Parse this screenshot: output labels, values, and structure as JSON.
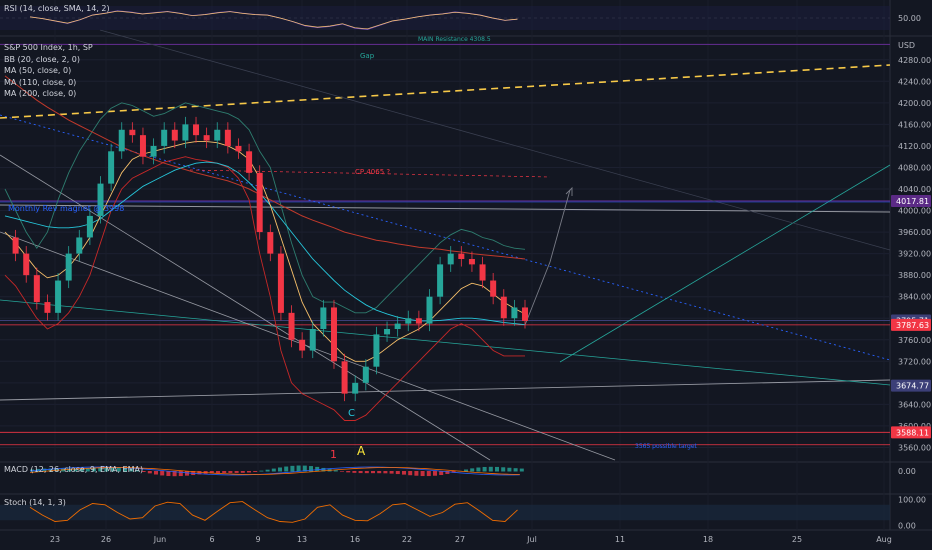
{
  "chart_data": {
    "type": "line",
    "title": "S&P 500 Index, 1h, SP",
    "currency": "USD",
    "studies": [
      "BB (20, close, 2, 0)",
      "MA (50, close, 0)",
      "MA (110, close, 0)",
      "MA (200, close, 0)"
    ],
    "x_ticks": [
      "23",
      "26",
      "Jun",
      "6",
      "9",
      "13",
      "16",
      "22",
      "27",
      "Jul",
      "11",
      "18",
      "25",
      "Aug"
    ],
    "price_ticks": [
      4280,
      4240,
      4200,
      4160,
      4120,
      4080,
      4040,
      4000,
      3960,
      3920,
      3880,
      3840,
      3800,
      3760,
      3720,
      3680,
      3640,
      3600,
      3560
    ],
    "ylim": [
      3533,
      4313
    ],
    "price_tags": [
      {
        "value": "4017.81",
        "color": "#5b2a86"
      },
      {
        "value": "3795.71",
        "color": "#3c3f78"
      },
      {
        "value": "3787.63",
        "color": "#f23645"
      },
      {
        "value": "3674.77",
        "color": "#3c3f78"
      },
      {
        "value": "3588.11",
        "color": "#f23645"
      }
    ],
    "annotations": [
      {
        "text": "MAIN Resistance 4308.5",
        "color": "#26a69a"
      },
      {
        "text": "Gap",
        "color": "#26a69a"
      },
      {
        "text": "Monthly Rev magnet @ 3998",
        "color": "#2962ff"
      },
      {
        "text": "CP 4065 ?",
        "color": "#f23645"
      },
      {
        "text": "3565 possible target",
        "color": "#2962ff"
      },
      {
        "text": "C",
        "color": "#26c6da"
      },
      {
        "text": "A",
        "color": "#ffeb3b"
      },
      {
        "text": "1",
        "color": "#f23645"
      }
    ],
    "price_series": [
      {
        "t": 0,
        "v": 3950
      },
      {
        "t": 1,
        "v": 3920
      },
      {
        "t": 2,
        "v": 3880
      },
      {
        "t": 3,
        "v": 3830
      },
      {
        "t": 4,
        "v": 3810
      },
      {
        "t": 5,
        "v": 3870
      },
      {
        "t": 6,
        "v": 3920
      },
      {
        "t": 7,
        "v": 3950
      },
      {
        "t": 8,
        "v": 3990
      },
      {
        "t": 9,
        "v": 4050
      },
      {
        "t": 10,
        "v": 4110
      },
      {
        "t": 11,
        "v": 4150
      },
      {
        "t": 12,
        "v": 4140
      },
      {
        "t": 13,
        "v": 4100
      },
      {
        "t": 14,
        "v": 4120
      },
      {
        "t": 15,
        "v": 4150
      },
      {
        "t": 16,
        "v": 4130
      },
      {
        "t": 17,
        "v": 4160
      },
      {
        "t": 18,
        "v": 4140
      },
      {
        "t": 19,
        "v": 4130
      },
      {
        "t": 20,
        "v": 4150
      },
      {
        "t": 21,
        "v": 4120
      },
      {
        "t": 22,
        "v": 4110
      },
      {
        "t": 23,
        "v": 4070
      },
      {
        "t": 24,
        "v": 3960
      },
      {
        "t": 25,
        "v": 3920
      },
      {
        "t": 26,
        "v": 3810
      },
      {
        "t": 27,
        "v": 3760
      },
      {
        "t": 28,
        "v": 3740
      },
      {
        "t": 29,
        "v": 3780
      },
      {
        "t": 30,
        "v": 3820
      },
      {
        "t": 31,
        "v": 3720
      },
      {
        "t": 32,
        "v": 3660
      },
      {
        "t": 33,
        "v": 3680
      },
      {
        "t": 34,
        "v": 3710
      },
      {
        "t": 35,
        "v": 3770
      },
      {
        "t": 36,
        "v": 3780
      },
      {
        "t": 37,
        "v": 3790
      },
      {
        "t": 38,
        "v": 3800
      },
      {
        "t": 39,
        "v": 3790
      },
      {
        "t": 40,
        "v": 3840
      },
      {
        "t": 41,
        "v": 3900
      },
      {
        "t": 42,
        "v": 3920
      },
      {
        "t": 43,
        "v": 3910
      },
      {
        "t": 44,
        "v": 3900
      },
      {
        "t": 45,
        "v": 3870
      },
      {
        "t": 46,
        "v": 3840
      },
      {
        "t": 47,
        "v": 3800
      },
      {
        "t": 48,
        "v": 3820
      },
      {
        "t": 49,
        "v": 3795
      }
    ],
    "ma50": [
      3960,
      3940,
      3915,
      3890,
      3875,
      3880,
      3895,
      3920,
      3950,
      3990,
      4030,
      4070,
      4095,
      4105,
      4110,
      4115,
      4120,
      4125,
      4128,
      4128,
      4126,
      4120,
      4110,
      4095,
      4060,
      4010,
      3950,
      3890,
      3830,
      3790,
      3770,
      3750,
      3730,
      3720,
      3720,
      3730,
      3745,
      3760,
      3770,
      3780,
      3795,
      3815,
      3835,
      3855,
      3865,
      3860,
      3845,
      3830,
      3818,
      3808
    ],
    "ma110": [
      3990,
      3985,
      3980,
      3975,
      3970,
      3968,
      3968,
      3970,
      3975,
      3985,
      4000,
      4015,
      4030,
      4045,
      4055,
      4065,
      4075,
      4082,
      4088,
      4090,
      4088,
      4082,
      4070,
      4052,
      4032,
      4010,
      3985,
      3960,
      3935,
      3910,
      3890,
      3870,
      3852,
      3838,
      3825,
      3815,
      3808,
      3802,
      3798,
      3795,
      3795,
      3796,
      3798,
      3800,
      3800,
      3798,
      3795,
      3792,
      3790,
      3788
    ],
    "ma200": [
      4250,
      4235,
      4220,
      4205,
      4192,
      4180,
      4168,
      4158,
      4148,
      4138,
      4128,
      4118,
      4110,
      4102,
      4095,
      4088,
      4082,
      4076,
      4070,
      4065,
      4060,
      4055,
      4048,
      4040,
      4030,
      4020,
      4010,
      4000,
      3990,
      3982,
      3975,
      3968,
      3960,
      3955,
      3950,
      3945,
      3942,
      3938,
      3935,
      3932,
      3930,
      3928,
      3925,
      3923,
      3920,
      3918,
      3916,
      3914,
      3912,
      3910
    ],
    "bb_upper": [
      4040,
      4000,
      3960,
      3930,
      3960,
      4020,
      4070,
      4110,
      4140,
      4170,
      4190,
      4200,
      4195,
      4185,
      4175,
      4180,
      4190,
      4200,
      4195,
      4190,
      4185,
      4180,
      4170,
      4150,
      4110,
      4080,
      4010,
      3940,
      3880,
      3840,
      3830,
      3830,
      3820,
      3810,
      3810,
      3820,
      3840,
      3860,
      3880,
      3900,
      3920,
      3940,
      3955,
      3965,
      3960,
      3950,
      3945,
      3935,
      3930,
      3928
    ],
    "bb_lower": [
      3880,
      3860,
      3830,
      3800,
      3780,
      3790,
      3810,
      3840,
      3880,
      3940,
      4000,
      4040,
      4060,
      4070,
      4080,
      4090,
      4095,
      4100,
      4095,
      4092,
      4088,
      4080,
      4060,
      4020,
      3920,
      3840,
      3740,
      3680,
      3660,
      3650,
      3640,
      3630,
      3610,
      3610,
      3620,
      3640,
      3660,
      3680,
      3700,
      3720,
      3740,
      3760,
      3780,
      3790,
      3780,
      3760,
      3740,
      3730,
      3730,
      3730
    ],
    "rsi": {
      "title": "RSI (14, close, SMA, 14, 2)",
      "ticks": [
        50.0
      ],
      "ylim": [
        30,
        70
      ]
    },
    "macd": {
      "title": "MACD (12, 26, close, 9, EMA, EMA)",
      "ticks": [
        0.0
      ]
    },
    "stoch": {
      "title": "Stoch (14, 1, 3)",
      "ticks": [
        100.0,
        0.0
      ],
      "ylim": [
        -10,
        110
      ]
    }
  },
  "axis_label_color": "#b2b5be",
  "colors": {
    "background": "#131722",
    "up": "#26a69a",
    "down": "#f23645",
    "ma50": "#f7c06a",
    "ma110": "#26c6da",
    "ma200": "#c0392b",
    "bb": "#2e7d6f"
  }
}
